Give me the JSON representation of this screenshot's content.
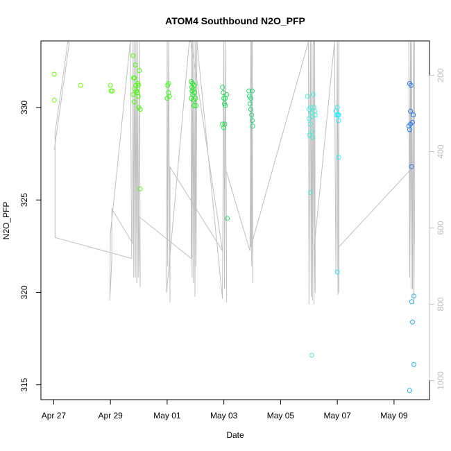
{
  "chart_data": {
    "type": "scatter",
    "title": "ATOM4 Southbound N2O_PFP",
    "xlabel": "Date",
    "ylabel": "N2O_PFP",
    "x_ticks": [
      {
        "day": 0,
        "label": "Apr 27"
      },
      {
        "day": 2,
        "label": "Apr 29"
      },
      {
        "day": 4,
        "label": "May 01"
      },
      {
        "day": 6,
        "label": "May 03"
      },
      {
        "day": 8,
        "label": "May 05"
      },
      {
        "day": 10,
        "label": "May 07"
      },
      {
        "day": 12,
        "label": "May 09"
      }
    ],
    "xlim": [
      -0.45,
      13.25
    ],
    "ylim": [
      314.2,
      333.6
    ],
    "y_ticks": [
      315,
      320,
      325,
      330
    ],
    "y2_ticks": [
      200,
      400,
      600,
      800,
      1000
    ],
    "y2lim": [
      110,
      1050
    ],
    "colors": {
      "green": "#33ff00",
      "green2": "#11ee33",
      "mid": "#22dd77",
      "cyan": "#22ffee",
      "blue": "#1188ee",
      "line": "#bfbfbf"
    },
    "points": [
      {
        "x": 0.02,
        "y": 331.8,
        "c": "#66ff00"
      },
      {
        "x": 0.02,
        "y": 330.4,
        "c": "#66ff00"
      },
      {
        "x": 0.95,
        "y": 331.2,
        "c": "#66ff00"
      },
      {
        "x": 2.0,
        "y": 331.2,
        "c": "#55ff00"
      },
      {
        "x": 2.02,
        "y": 330.9,
        "c": "#55ff00"
      },
      {
        "x": 2.06,
        "y": 330.9,
        "c": "#55ff00"
      },
      {
        "x": 2.8,
        "y": 332.8,
        "c": "#44ff00"
      },
      {
        "x": 2.82,
        "y": 331.6,
        "c": "#44ff00"
      },
      {
        "x": 2.85,
        "y": 331.6,
        "c": "#44ff00"
      },
      {
        "x": 2.88,
        "y": 332.3,
        "c": "#44ff00"
      },
      {
        "x": 2.9,
        "y": 331.2,
        "c": "#44ff00"
      },
      {
        "x": 2.92,
        "y": 330.9,
        "c": "#44ff00"
      },
      {
        "x": 2.95,
        "y": 330.8,
        "c": "#44ff00"
      },
      {
        "x": 2.97,
        "y": 331.3,
        "c": "#44ff00"
      },
      {
        "x": 2.98,
        "y": 330.6,
        "c": "#44ff00"
      },
      {
        "x": 3.0,
        "y": 330.0,
        "c": "#44ff00"
      },
      {
        "x": 3.02,
        "y": 332.0,
        "c": "#44ff00"
      },
      {
        "x": 2.8,
        "y": 330.7,
        "c": "#44ff00"
      },
      {
        "x": 2.84,
        "y": 330.3,
        "c": "#44ff00"
      },
      {
        "x": 2.86,
        "y": 331.0,
        "c": "#44ff00"
      },
      {
        "x": 2.99,
        "y": 331.2,
        "c": "#44ff00"
      },
      {
        "x": 3.05,
        "y": 329.9,
        "c": "#44ff00"
      },
      {
        "x": 3.05,
        "y": 325.6,
        "c": "#44ff00"
      },
      {
        "x": 4.02,
        "y": 331.2,
        "c": "#33ff11"
      },
      {
        "x": 4.05,
        "y": 331.3,
        "c": "#33ff11"
      },
      {
        "x": 4.05,
        "y": 330.8,
        "c": "#33ff11"
      },
      {
        "x": 4.08,
        "y": 330.6,
        "c": "#33ff11"
      },
      {
        "x": 4.0,
        "y": 330.5,
        "c": "#33ff11"
      },
      {
        "x": 4.85,
        "y": 331.4,
        "c": "#22ee22"
      },
      {
        "x": 4.87,
        "y": 331.1,
        "c": "#22ee22"
      },
      {
        "x": 4.88,
        "y": 330.9,
        "c": "#22ee22"
      },
      {
        "x": 4.9,
        "y": 331.3,
        "c": "#22ee22"
      },
      {
        "x": 4.92,
        "y": 331.0,
        "c": "#22ee22"
      },
      {
        "x": 4.95,
        "y": 331.2,
        "c": "#22ee22"
      },
      {
        "x": 4.97,
        "y": 330.8,
        "c": "#22ee22"
      },
      {
        "x": 4.85,
        "y": 330.5,
        "c": "#22ee22"
      },
      {
        "x": 4.9,
        "y": 330.7,
        "c": "#22ee22"
      },
      {
        "x": 4.93,
        "y": 330.4,
        "c": "#22ee22"
      },
      {
        "x": 4.95,
        "y": 330.1,
        "c": "#22ee22"
      },
      {
        "x": 5.0,
        "y": 330.5,
        "c": "#22ee22"
      },
      {
        "x": 5.02,
        "y": 330.1,
        "c": "#22ee22"
      },
      {
        "x": 4.88,
        "y": 330.9,
        "c": "#22ee22"
      },
      {
        "x": 5.95,
        "y": 331.1,
        "c": "#22dd55"
      },
      {
        "x": 5.98,
        "y": 330.8,
        "c": "#22dd55"
      },
      {
        "x": 6.0,
        "y": 330.5,
        "c": "#22dd55"
      },
      {
        "x": 6.02,
        "y": 330.2,
        "c": "#22dd55"
      },
      {
        "x": 6.05,
        "y": 330.1,
        "c": "#22dd55"
      },
      {
        "x": 6.1,
        "y": 330.7,
        "c": "#22dd55"
      },
      {
        "x": 5.95,
        "y": 329.1,
        "c": "#22dd55"
      },
      {
        "x": 6.0,
        "y": 328.9,
        "c": "#22dd55"
      },
      {
        "x": 6.03,
        "y": 329.1,
        "c": "#22dd55"
      },
      {
        "x": 6.05,
        "y": 330.5,
        "c": "#22dd55"
      },
      {
        "x": 6.12,
        "y": 324.0,
        "c": "#22dd55"
      },
      {
        "x": 6.88,
        "y": 330.9,
        "c": "#22dd77"
      },
      {
        "x": 6.9,
        "y": 330.6,
        "c": "#22dd77"
      },
      {
        "x": 6.92,
        "y": 330.2,
        "c": "#22dd77"
      },
      {
        "x": 6.95,
        "y": 329.9,
        "c": "#22dd77"
      },
      {
        "x": 6.98,
        "y": 329.6,
        "c": "#22dd77"
      },
      {
        "x": 7.0,
        "y": 329.3,
        "c": "#22dd77"
      },
      {
        "x": 7.02,
        "y": 329.0,
        "c": "#22dd77"
      },
      {
        "x": 6.95,
        "y": 330.5,
        "c": "#22dd77"
      },
      {
        "x": 7.0,
        "y": 330.9,
        "c": "#22dd77"
      },
      {
        "x": 8.95,
        "y": 330.6,
        "c": "#44eedd"
      },
      {
        "x": 9.0,
        "y": 329.9,
        "c": "#44eedd"
      },
      {
        "x": 9.05,
        "y": 330.0,
        "c": "#44eedd"
      },
      {
        "x": 9.08,
        "y": 329.7,
        "c": "#44eedd"
      },
      {
        "x": 9.1,
        "y": 329.5,
        "c": "#44eedd"
      },
      {
        "x": 9.12,
        "y": 328.4,
        "c": "#44eedd"
      },
      {
        "x": 9.15,
        "y": 330.7,
        "c": "#44eedd"
      },
      {
        "x": 9.18,
        "y": 330.0,
        "c": "#44eedd"
      },
      {
        "x": 9.2,
        "y": 329.8,
        "c": "#44eedd"
      },
      {
        "x": 9.22,
        "y": 329.6,
        "c": "#44eedd"
      },
      {
        "x": 9.05,
        "y": 329.1,
        "c": "#44eedd"
      },
      {
        "x": 9.1,
        "y": 328.7,
        "c": "#44eedd"
      },
      {
        "x": 9.0,
        "y": 329.4,
        "c": "#44eedd"
      },
      {
        "x": 9.02,
        "y": 328.5,
        "c": "#44eedd"
      },
      {
        "x": 9.05,
        "y": 325.4,
        "c": "#44eedd"
      },
      {
        "x": 9.1,
        "y": 316.6,
        "c": "#44eedd"
      },
      {
        "x": 9.95,
        "y": 329.8,
        "c": "#22eeff"
      },
      {
        "x": 9.98,
        "y": 329.6,
        "c": "#22eeff"
      },
      {
        "x": 10.0,
        "y": 330.0,
        "c": "#22eeff"
      },
      {
        "x": 10.02,
        "y": 329.6,
        "c": "#22eeff"
      },
      {
        "x": 10.05,
        "y": 329.6,
        "c": "#22eeff"
      },
      {
        "x": 10.05,
        "y": 329.3,
        "c": "#22eeff"
      },
      {
        "x": 10.05,
        "y": 327.3,
        "c": "#22eeff"
      },
      {
        "x": 10.0,
        "y": 321.1,
        "c": "#22eeff"
      },
      {
        "x": 12.55,
        "y": 331.3,
        "c": "#2277ee"
      },
      {
        "x": 12.6,
        "y": 331.2,
        "c": "#2277ee"
      },
      {
        "x": 12.58,
        "y": 329.8,
        "c": "#2277ee"
      },
      {
        "x": 12.52,
        "y": 329.0,
        "c": "#2277ee"
      },
      {
        "x": 12.55,
        "y": 328.8,
        "c": "#2277ee"
      },
      {
        "x": 12.58,
        "y": 329.1,
        "c": "#2277ee"
      },
      {
        "x": 12.65,
        "y": 329.2,
        "c": "#2277ee"
      },
      {
        "x": 12.68,
        "y": 329.6,
        "c": "#2277ee"
      },
      {
        "x": 12.62,
        "y": 326.8,
        "c": "#2277ee"
      },
      {
        "x": 12.62,
        "y": 319.5,
        "c": "#22aaee"
      },
      {
        "x": 12.65,
        "y": 318.4,
        "c": "#22aaee"
      },
      {
        "x": 12.7,
        "y": 319.8,
        "c": "#22aaee"
      },
      {
        "x": 12.7,
        "y": 316.1,
        "c": "#22aaee"
      },
      {
        "x": 12.55,
        "y": 314.7,
        "c": "#22aaee"
      }
    ],
    "altitude_path": [
      [
        0.02,
        395
      ],
      [
        0.55,
        115
      ],
      [
        0.5,
        112
      ],
      [
        0.05,
        350
      ],
      [
        0.05,
        625
      ],
      [
        2.75,
        680
      ],
      [
        2.7,
        112
      ],
      [
        2.0,
        615
      ],
      [
        1.98,
        790
      ],
      [
        2.05,
        680
      ],
      [
        2.05,
        550
      ],
      [
        2.78,
        640
      ],
      [
        2.8,
        112
      ],
      [
        2.82,
        730
      ],
      [
        2.85,
        112
      ],
      [
        2.88,
        730
      ],
      [
        2.9,
        112
      ],
      [
        2.93,
        745
      ],
      [
        2.95,
        112
      ],
      [
        2.98,
        730
      ],
      [
        3.02,
        112
      ],
      [
        3.05,
        755
      ],
      [
        3.0,
        570
      ],
      [
        4.85,
        680
      ],
      [
        4.85,
        112
      ],
      [
        4.78,
        112
      ],
      [
        3.98,
        770
      ],
      [
        4.0,
        112
      ],
      [
        4.02,
        700
      ],
      [
        4.05,
        112
      ],
      [
        4.1,
        795
      ],
      [
        4.1,
        440
      ],
      [
        5.95,
        660
      ],
      [
        4.85,
        112
      ],
      [
        4.88,
        730
      ],
      [
        4.9,
        112
      ],
      [
        4.93,
        745
      ],
      [
        4.95,
        112
      ],
      [
        4.98,
        780
      ],
      [
        5.0,
        112
      ],
      [
        5.02,
        700
      ],
      [
        5.05,
        112
      ],
      [
        5.95,
        785
      ],
      [
        6.0,
        112
      ],
      [
        6.02,
        760
      ],
      [
        6.05,
        112
      ],
      [
        6.1,
        795
      ],
      [
        6.08,
        450
      ],
      [
        6.92,
        660
      ],
      [
        6.95,
        112
      ],
      [
        6.98,
        700
      ],
      [
        7.0,
        112
      ],
      [
        7.02,
        745
      ],
      [
        7.0,
        430
      ],
      [
        6.98,
        112
      ],
      [
        6.95,
        650
      ],
      [
        8.98,
        112
      ],
      [
        9.0,
        800
      ],
      [
        9.05,
        112
      ],
      [
        9.08,
        780
      ],
      [
        9.1,
        112
      ],
      [
        9.12,
        790
      ],
      [
        9.15,
        112
      ],
      [
        9.18,
        800
      ],
      [
        9.2,
        112
      ],
      [
        9.22,
        770
      ],
      [
        9.2,
        640
      ],
      [
        9.9,
        112
      ],
      [
        9.95,
        720
      ],
      [
        10.0,
        112
      ],
      [
        10.02,
        775
      ],
      [
        10.05,
        112
      ],
      [
        10.05,
        770
      ],
      [
        10.05,
        650
      ],
      [
        12.55,
        450
      ],
      [
        12.52,
        112
      ],
      [
        12.55,
        730
      ],
      [
        12.58,
        112
      ],
      [
        12.6,
        760
      ],
      [
        12.62,
        112
      ],
      [
        12.65,
        760
      ],
      [
        12.68,
        112
      ],
      [
        12.7,
        800
      ],
      [
        12.72,
        600
      ],
      [
        12.72,
        112
      ]
    ]
  }
}
